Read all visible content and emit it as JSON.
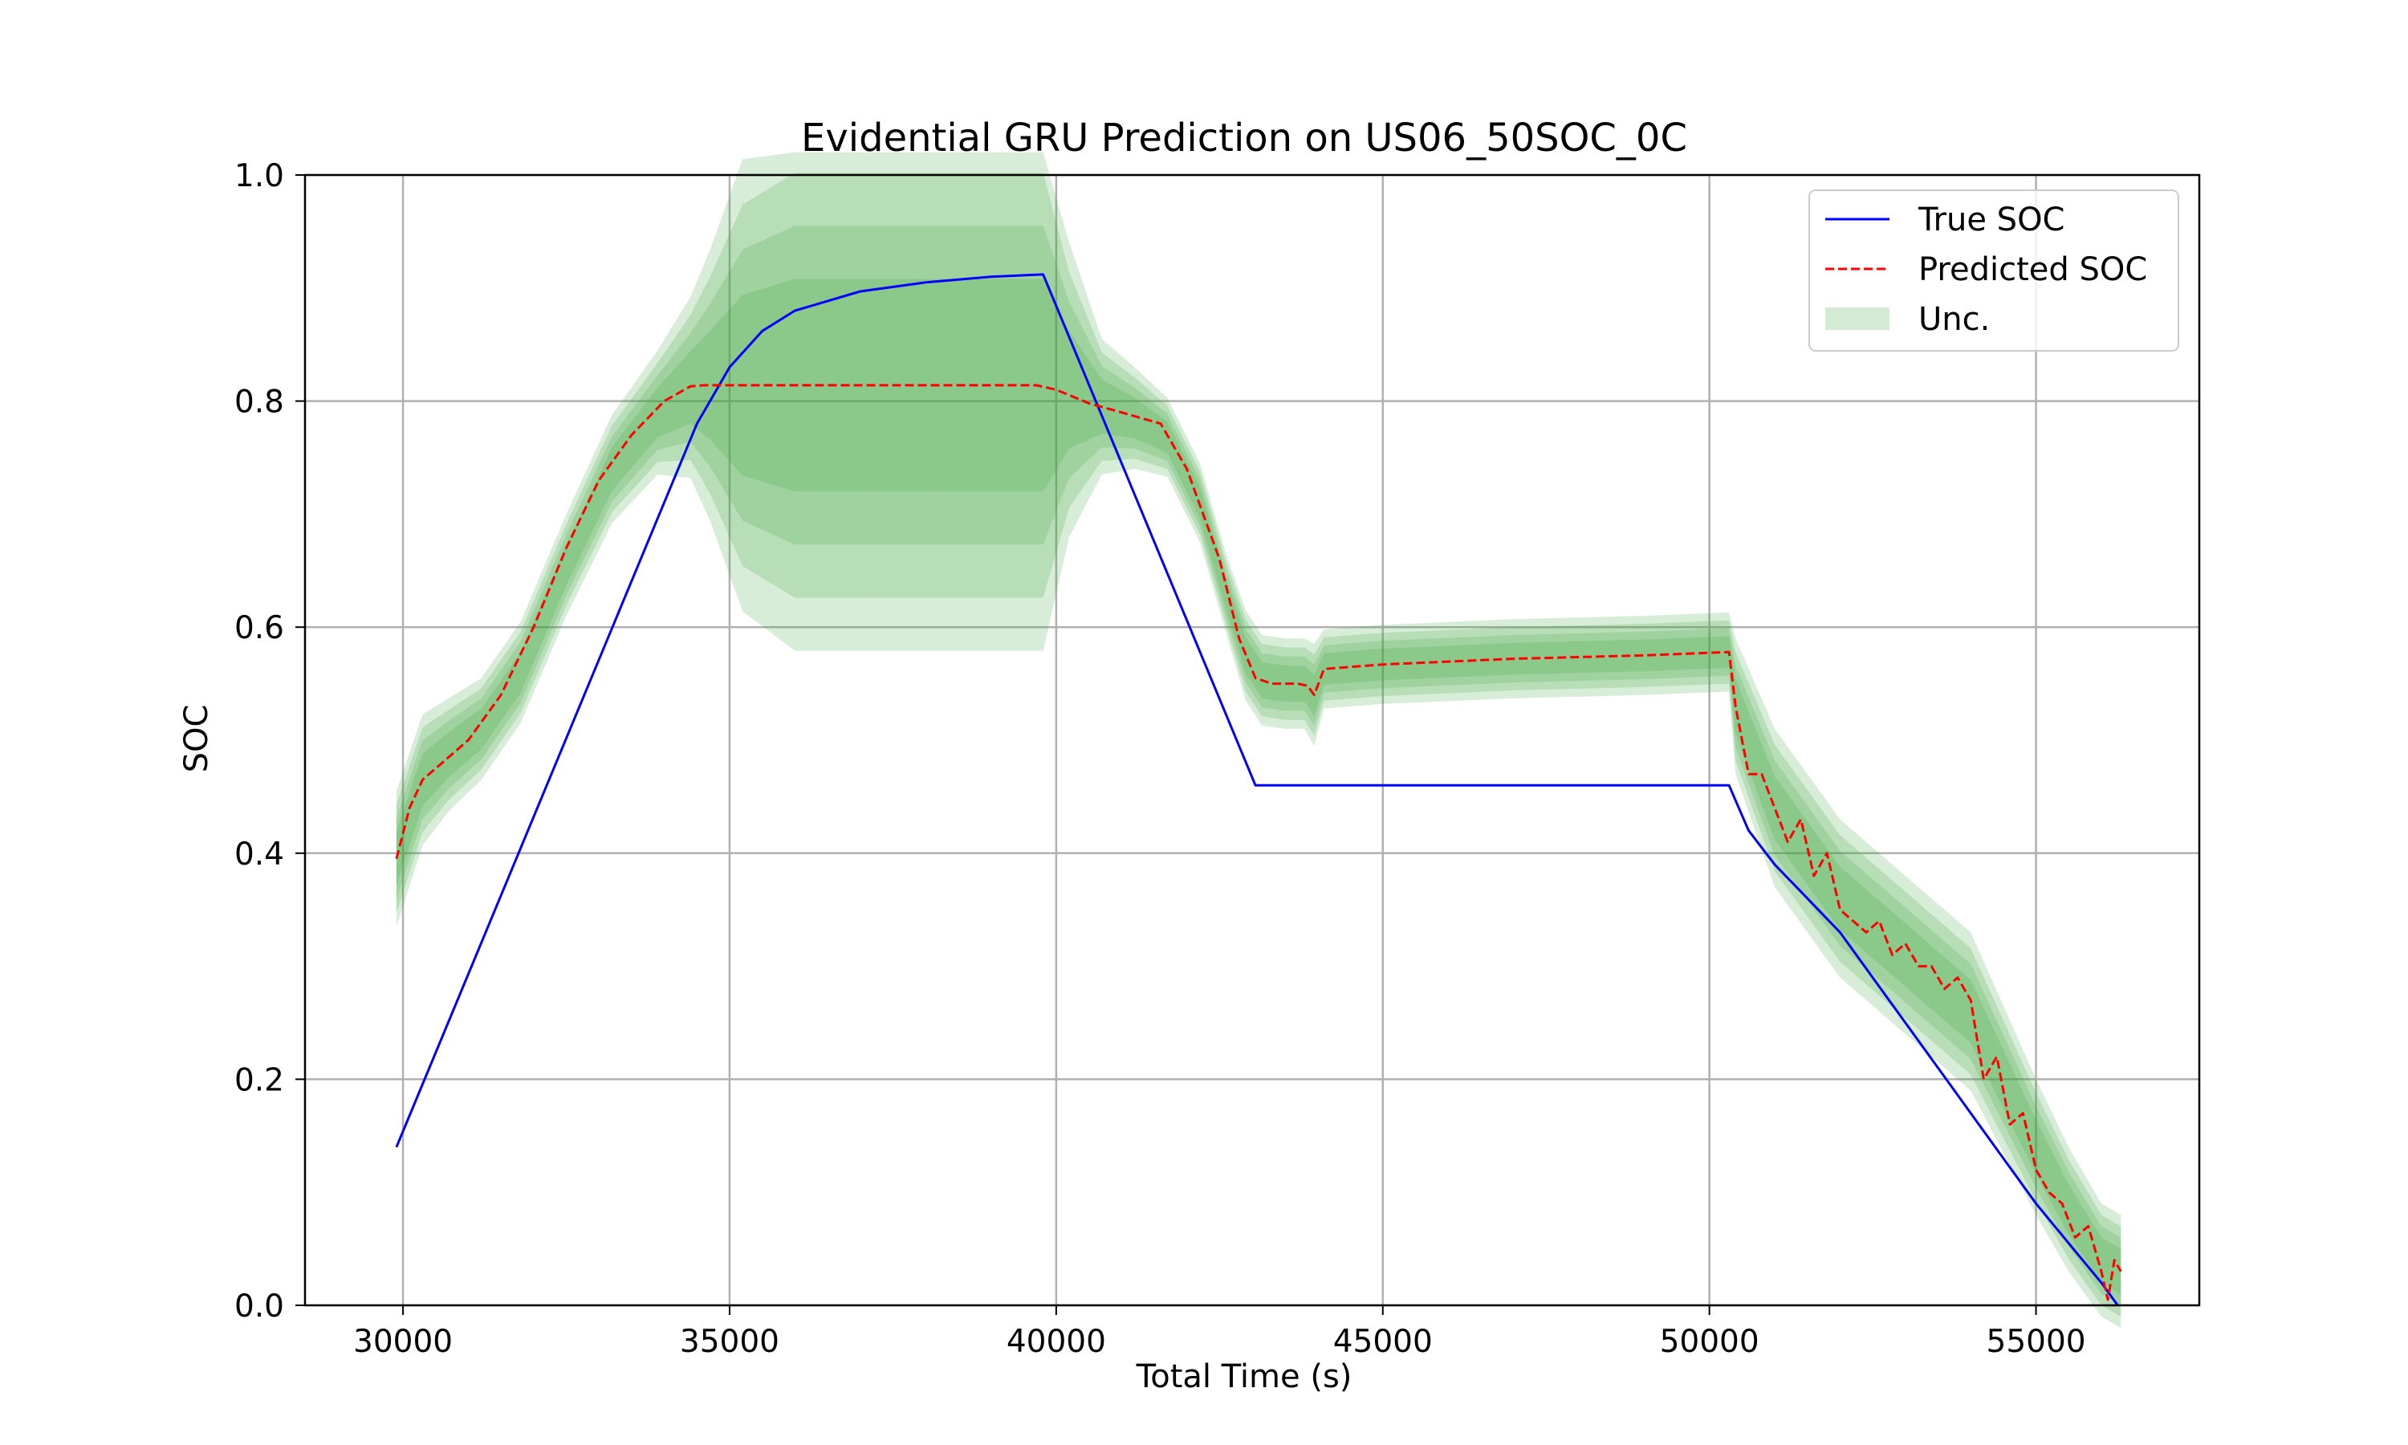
{
  "chart_data": {
    "type": "line",
    "title": "Evidential GRU Prediction on US06_50SOC_0C",
    "xlabel": "Total Time (s)",
    "ylabel": "SOC",
    "xlim": [
      28500,
      57500
    ],
    "ylim": [
      0.0,
      1.0
    ],
    "grid": true,
    "legend_position": "top-right",
    "x_ticks": [
      30000,
      35000,
      40000,
      45000,
      50000,
      55000
    ],
    "x_tick_labels": [
      "30000",
      "35000",
      "40000",
      "45000",
      "50000",
      "55000"
    ],
    "y_ticks": [
      0.0,
      0.2,
      0.4,
      0.6,
      0.8,
      1.0
    ],
    "y_tick_labels": [
      "0.0",
      "0.2",
      "0.4",
      "0.6",
      "0.8",
      "1.0"
    ],
    "legend": [
      {
        "name": "True SOC",
        "style": "solid",
        "color": "#0000ff"
      },
      {
        "name": "Predicted SOC",
        "style": "dashed",
        "color": "#ff0000"
      },
      {
        "name": "Unc.",
        "style": "fill",
        "color": "#d3ebd3"
      }
    ],
    "series": [
      {
        "name": "True SOC",
        "color": "#0000ff",
        "x": [
          29900,
          34500,
          35000,
          35500,
          36000,
          37000,
          38000,
          39000,
          39800,
          43050,
          43500,
          45000,
          47000,
          49000,
          50300,
          50600,
          51000,
          51500,
          52000,
          52500,
          53000,
          53500,
          54000,
          54500,
          55000,
          55500,
          56000,
          56250
        ],
        "values": [
          0.14,
          0.78,
          0.83,
          0.862,
          0.88,
          0.897,
          0.905,
          0.91,
          0.912,
          0.46,
          0.46,
          0.46,
          0.46,
          0.46,
          0.46,
          0.42,
          0.39,
          0.36,
          0.33,
          0.29,
          0.25,
          0.21,
          0.17,
          0.13,
          0.09,
          0.055,
          0.02,
          0.0
        ]
      },
      {
        "name": "Predicted SOC",
        "color": "#ff0000",
        "x": [
          29900,
          30100,
          30300,
          30600,
          31000,
          31500,
          32000,
          32500,
          33000,
          33500,
          34000,
          34400,
          34600,
          35000,
          36000,
          37000,
          38000,
          39000,
          39700,
          40000,
          40500,
          41000,
          41600,
          42000,
          42500,
          42800,
          43050,
          43300,
          43700,
          43850,
          43950,
          44100,
          45000,
          47000,
          49000,
          50300,
          50400,
          50600,
          50800,
          51000,
          51200,
          51400,
          51600,
          51800,
          52000,
          52200,
          52400,
          52600,
          52800,
          53000,
          53200,
          53400,
          53600,
          53800,
          54000,
          54200,
          54400,
          54600,
          54800,
          55000,
          55200,
          55400,
          55600,
          55800,
          56000,
          56100,
          56200,
          56300
        ],
        "values": [
          0.395,
          0.44,
          0.465,
          0.48,
          0.5,
          0.54,
          0.6,
          0.67,
          0.73,
          0.77,
          0.8,
          0.813,
          0.814,
          0.814,
          0.814,
          0.814,
          0.814,
          0.814,
          0.814,
          0.81,
          0.798,
          0.79,
          0.78,
          0.74,
          0.66,
          0.59,
          0.555,
          0.55,
          0.55,
          0.548,
          0.54,
          0.563,
          0.567,
          0.572,
          0.575,
          0.578,
          0.53,
          0.47,
          0.47,
          0.44,
          0.41,
          0.43,
          0.38,
          0.4,
          0.35,
          0.34,
          0.33,
          0.34,
          0.31,
          0.32,
          0.3,
          0.3,
          0.28,
          0.29,
          0.27,
          0.2,
          0.22,
          0.16,
          0.17,
          0.12,
          0.1,
          0.09,
          0.06,
          0.07,
          0.03,
          0.005,
          0.04,
          0.03
        ]
      }
    ],
    "uncertainty_bands": {
      "name": "Unc.",
      "color": "#3ba63b",
      "opacity_per_band": 0.2,
      "x": [
        29900,
        30300,
        30700,
        31200,
        31800,
        32500,
        33200,
        33900,
        34400,
        34700,
        35200,
        36000,
        37000,
        38000,
        39000,
        39750,
        39800,
        40200,
        40700,
        41200,
        41700,
        42200,
        42600,
        42900,
        43150,
        43500,
        43800,
        43950,
        44100,
        45000,
        47000,
        49000,
        50300,
        50400,
        51000,
        52000,
        53000,
        54000,
        54500,
        55000,
        55500,
        56000,
        56300
      ],
      "center": [
        0.395,
        0.465,
        0.487,
        0.51,
        0.56,
        0.655,
        0.74,
        0.79,
        0.812,
        0.814,
        0.814,
        0.814,
        0.814,
        0.814,
        0.814,
        0.814,
        0.814,
        0.81,
        0.795,
        0.785,
        0.768,
        0.71,
        0.63,
        0.575,
        0.553,
        0.55,
        0.55,
        0.54,
        0.563,
        0.567,
        0.572,
        0.575,
        0.578,
        0.53,
        0.44,
        0.36,
        0.31,
        0.26,
        0.2,
        0.14,
        0.085,
        0.04,
        0.03
      ],
      "half_width_outer": [
        0.06,
        0.058,
        0.05,
        0.045,
        0.045,
        0.045,
        0.048,
        0.055,
        0.08,
        0.12,
        0.2,
        0.235,
        0.235,
        0.235,
        0.235,
        0.235,
        0.235,
        0.13,
        0.06,
        0.045,
        0.035,
        0.035,
        0.035,
        0.04,
        0.04,
        0.04,
        0.04,
        0.045,
        0.035,
        0.035,
        0.035,
        0.035,
        0.035,
        0.06,
        0.07,
        0.07,
        0.07,
        0.07,
        0.065,
        0.06,
        0.055,
        0.05,
        0.05
      ]
    }
  }
}
